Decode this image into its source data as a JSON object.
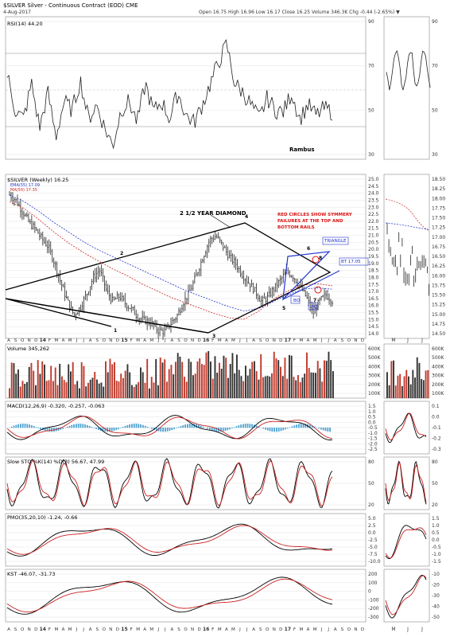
{
  "header": {
    "symbol_line": "$SILVER Silver - Continuous Contract (EOD) CME",
    "date": "4-Aug-2017",
    "quote": "Open 16.75  High 16.96  Low 16.17  Close 16.25  Volume 346.3K  Chg -0.44 (-2.65%) ▼"
  },
  "watermark": "Rambus",
  "colors": {
    "bar_up": "#333333",
    "bar_down": "#c0392b",
    "ema": "#2233cc",
    "ma": "#cc2222",
    "triangle": "#2233cc",
    "annotation": "#dd1111",
    "histogram": "#4fa3d1"
  },
  "panels": {
    "rsi": {
      "title": "RSI(14) 44.20",
      "ticks": [
        "90",
        "70",
        "50",
        "30"
      ],
      "right_ticks": [
        "90",
        "70",
        "50",
        "30"
      ]
    },
    "price": {
      "title": "$SILVER (Weekly) 16.25",
      "ema_legend": "EMA(55) 17.09",
      "ma_legend": "MA(50) 17.35",
      "ticks": [
        "25.0",
        "24.5",
        "24.0",
        "23.5",
        "23.0",
        "22.5",
        "22.0",
        "21.5",
        "21.0",
        "20.5",
        "20.0",
        "19.5",
        "19.0",
        "18.5",
        "18.0",
        "17.5",
        "17.0",
        "16.5",
        "16.0",
        "15.5",
        "15.0",
        "14.5",
        "14.0"
      ],
      "right_ticks": [
        "18.50",
        "18.25",
        "18.00",
        "17.75",
        "17.50",
        "17.25",
        "17.00",
        "16.75",
        "16.50",
        "16.25",
        "16.00",
        "15.75",
        "15.50",
        "15.25",
        "15.00",
        "14.75",
        "14.50"
      ],
      "annotations": {
        "diamond_label": "2 1/2 YEAR DIAMOND",
        "red_note": [
          "RED CIRCLES SHOW SYMMERY",
          "FAILURES AT THE TOP AND",
          "BOTTOM RAILS"
        ],
        "triangle_label": "TRIANGLE",
        "bt_label": "BT 17.05",
        "bo_labels": [
          "BO",
          "BO"
        ],
        "pivots": [
          "1",
          "2",
          "3",
          "4",
          "5",
          "6",
          "7",
          "8"
        ]
      }
    },
    "volume": {
      "title": "Volume 345,262",
      "ticks": [
        "600K",
        "500K",
        "400K",
        "300K",
        "200K",
        "100K"
      ],
      "right_ticks": [
        "600K",
        "500K",
        "400K",
        "300K",
        "200K",
        "100K"
      ]
    },
    "macd": {
      "title": "MACD(12,26,9) -0.320, -0.257, -0.063",
      "ticks": [
        "1.5",
        "1.0",
        "0.5",
        "0.0",
        "-0.5",
        "-1.0",
        "-1.5",
        "-2.0",
        "-2.5"
      ],
      "right_ticks": [
        "0.1",
        "0.0",
        "-0.1",
        "-0.2",
        "-0.3"
      ]
    },
    "sto": {
      "title": "Slow STO %K(14) %D(3) 56.67, 47.99",
      "ticks": [
        "80",
        "50",
        "20"
      ],
      "right_ticks": [
        "80",
        "50",
        "20"
      ]
    },
    "pmo": {
      "title": "PMO(35,20,10) -1.24, -0.66",
      "ticks": [
        "5.0",
        "2.5",
        "0.0",
        "-2.5",
        "-5.0",
        "-7.5",
        "-10.0"
      ],
      "right_ticks": [
        "1.5",
        "1.0",
        "0.5",
        "0.0",
        "-0.5",
        "-1.0",
        "-1.5"
      ]
    },
    "kst": {
      "title": "KST -46.07, -31.73",
      "ticks": [
        "200",
        "100",
        "0",
        "-100",
        "-200",
        "-300"
      ],
      "right_ticks": [
        "-10",
        "-20",
        "-30",
        "-40",
        "-50"
      ]
    }
  },
  "time_axis": {
    "labels": [
      "A",
      "S",
      "O",
      "N",
      "D",
      "14",
      "F",
      "M",
      "A",
      "M",
      "J",
      "J",
      "A",
      "S",
      "O",
      "N",
      "D",
      "15",
      "F",
      "M",
      "A",
      "M",
      "J",
      "J",
      "A",
      "S",
      "O",
      "N",
      "D",
      "16",
      "F",
      "M",
      "A",
      "M",
      "J",
      "J",
      "A",
      "S",
      "O",
      "N",
      "D",
      "17",
      "F",
      "M",
      "A",
      "M",
      "J",
      "J",
      "A",
      "S",
      "O",
      "N",
      "D"
    ],
    "right_labels": [
      "M",
      "J",
      "J"
    ]
  },
  "chart_data": {
    "type": "bar",
    "title": "$SILVER (Weekly) 16.25",
    "x_range": [
      "2013-08",
      "2017-08"
    ],
    "ylim": [
      13.5,
      25.5
    ],
    "series": [
      {
        "name": "EMA(55) 17.09",
        "values": [
          24.0,
          23.5,
          22.8,
          22.0,
          21.3,
          20.6,
          20.0,
          19.5,
          19.0,
          18.5,
          18.0,
          17.5,
          17.0,
          16.6,
          16.2,
          15.8,
          15.5,
          15.7,
          16.2,
          16.7,
          17.1,
          17.2,
          17.1
        ]
      },
      {
        "name": "MA(50) 17.35",
        "values": [
          23.5,
          23.0,
          22.2,
          21.3,
          20.5,
          19.8,
          19.2,
          18.6,
          18.1,
          17.5,
          17.0,
          16.5,
          16.1,
          15.7,
          15.3,
          15.0,
          14.9,
          15.5,
          16.4,
          17.0,
          17.4,
          17.5,
          17.35
        ]
      }
    ],
    "price_path": [
      24.0,
      23.6,
      22.8,
      22.0,
      21.5,
      20.8,
      20.2,
      19.0,
      17.5,
      16.2,
      15.2,
      15.8,
      16.8,
      18.0,
      18.5,
      17.0,
      16.2,
      16.6,
      16.0,
      15.6,
      15.0,
      14.8,
      14.6,
      14.1,
      14.0,
      14.6,
      15.2,
      16.2,
      17.0,
      18.2,
      19.5,
      20.7,
      21.0,
      20.3,
      19.5,
      19.0,
      18.2,
      17.6,
      17.0,
      16.2,
      16.5,
      17.2,
      17.8,
      18.4,
      18.0,
      17.3,
      16.5,
      15.3,
      16.2,
      16.7,
      16.25
    ],
    "pivots": [
      {
        "label": "1",
        "x": "2014-06",
        "y": 14.5
      },
      {
        "label": "2",
        "x": "2014-10",
        "y": 18.2
      },
      {
        "label": "3",
        "x": "2015-12",
        "y": 13.6
      },
      {
        "label": "4",
        "x": "2016-07",
        "y": 21.0
      },
      {
        "label": "5",
        "x": "2016-12",
        "y": 15.6
      },
      {
        "label": "6",
        "x": "2017-02",
        "y": 18.3
      },
      {
        "label": "7",
        "x": "2017-06",
        "y": 15.5
      },
      {
        "label": "8",
        "x": "2017-04",
        "y": 17.9
      }
    ]
  }
}
